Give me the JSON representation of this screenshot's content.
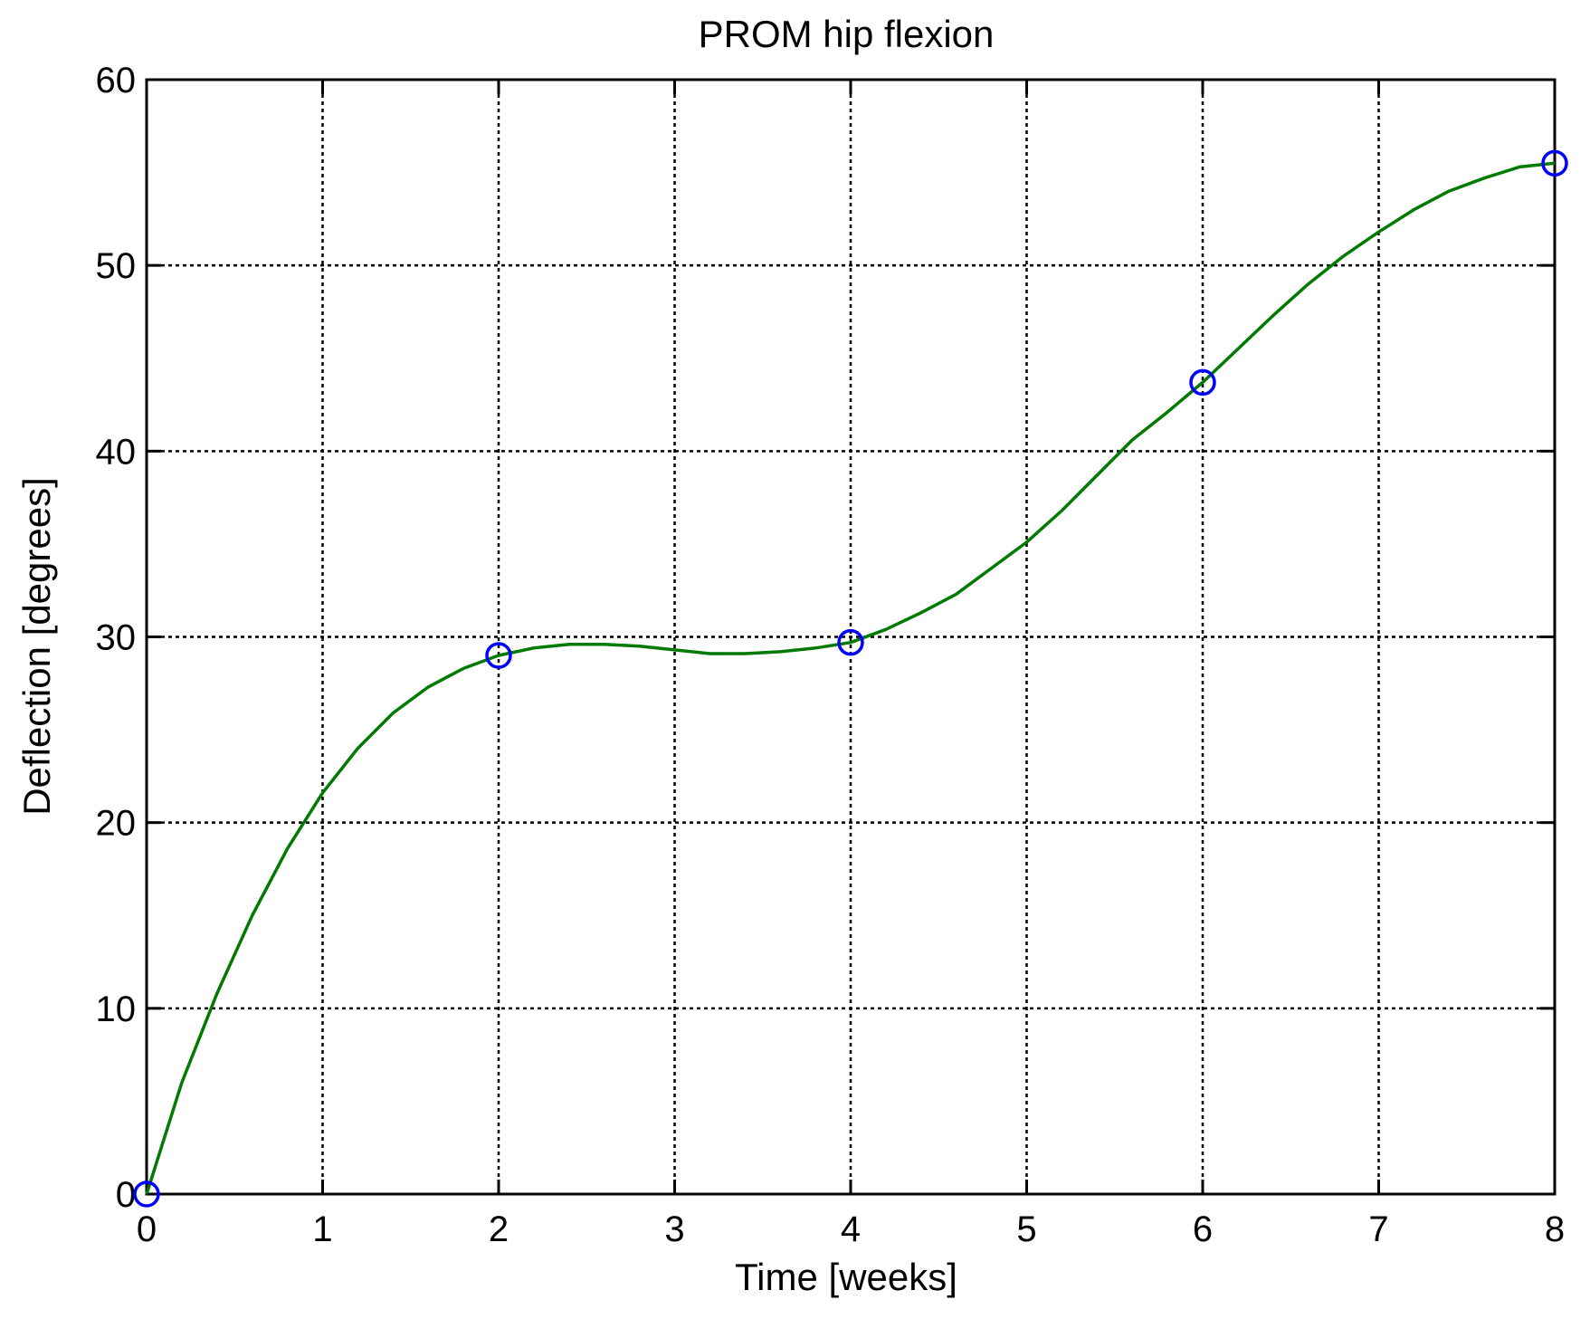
{
  "chart_data": {
    "type": "line",
    "title": "PROM hip flexion",
    "xlabel": "Time [weeks]",
    "ylabel": "Deflection [degrees]",
    "xlim": [
      0,
      8
    ],
    "ylim": [
      0,
      60
    ],
    "x_ticks": [
      "0",
      "1",
      "2",
      "3",
      "4",
      "5",
      "6",
      "7",
      "8"
    ],
    "y_ticks": [
      "0",
      "10",
      "20",
      "30",
      "40",
      "50",
      "60"
    ],
    "grid": true,
    "series": [
      {
        "kind": "markers",
        "marker": "circle",
        "color": "#0000ff",
        "x": [
          0,
          2,
          4,
          6,
          8
        ],
        "y": [
          0,
          29,
          29.7,
          43.7,
          55.5
        ]
      },
      {
        "kind": "line",
        "color": "#007a00",
        "x": [
          0,
          0.2,
          0.4,
          0.6,
          0.8,
          1.0,
          1.2,
          1.4,
          1.6,
          1.8,
          2.0,
          2.2,
          2.4,
          2.6,
          2.8,
          3.0,
          3.2,
          3.4,
          3.6,
          3.8,
          4.0,
          4.2,
          4.4,
          4.6,
          4.8,
          5.0,
          5.2,
          5.4,
          5.6,
          5.8,
          6.0,
          6.2,
          6.4,
          6.6,
          6.8,
          7.0,
          7.2,
          7.4,
          7.6,
          7.8,
          8.0
        ],
        "y": [
          0,
          6,
          10.8,
          15,
          18.6,
          21.6,
          24,
          25.9,
          27.3,
          28.3,
          29,
          29.4,
          29.6,
          29.6,
          29.5,
          29.3,
          29.1,
          29.1,
          29.2,
          29.4,
          29.7,
          30.4,
          31.3,
          32.3,
          33.7,
          35.1,
          36.8,
          38.7,
          40.6,
          42.1,
          43.7,
          45.5,
          47.3,
          49,
          50.5,
          51.8,
          53,
          54,
          54.7,
          55.3,
          55.5
        ]
      }
    ]
  }
}
